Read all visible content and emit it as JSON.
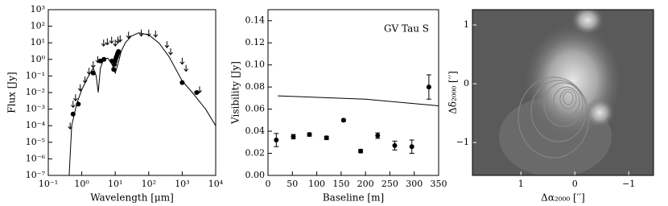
{
  "chart_data": [
    {
      "type": "scatter",
      "xlog": true,
      "ylog": true,
      "x_label": "Wavelength [μm]",
      "y_label": "Flux [Jy]",
      "xlim": [
        0.1,
        10000
      ],
      "ylim": [
        1e-07,
        1000
      ],
      "xticks": [
        {
          "value": 0.1,
          "label": "10⁻¹"
        },
        {
          "value": 1,
          "label": "10⁰"
        },
        {
          "value": 10,
          "label": "10¹"
        },
        {
          "value": 100,
          "label": "10²"
        },
        {
          "value": 1000,
          "label": "10³"
        },
        {
          "value": 10000,
          "label": "10⁴"
        }
      ],
      "yticks": [
        {
          "value": 1e-07,
          "label": "10⁻⁷"
        },
        {
          "value": 1e-06,
          "label": "10⁻⁶"
        },
        {
          "value": 1e-05,
          "label": "10⁻⁵"
        },
        {
          "value": 0.0001,
          "label": "10⁻⁴"
        },
        {
          "value": 0.001,
          "label": "10⁻³"
        },
        {
          "value": 0.01,
          "label": "10⁻²"
        },
        {
          "value": 0.1,
          "label": "10⁻¹"
        },
        {
          "value": 1,
          "label": "10⁰"
        },
        {
          "value": 10,
          "label": "10¹"
        },
        {
          "value": 100,
          "label": "10²"
        },
        {
          "value": 1000,
          "label": "10³"
        }
      ],
      "series": [
        {
          "marker": "line",
          "color": "#000000",
          "x": [
            0.42,
            0.5,
            0.7,
            1,
            1.5,
            2.2,
            2.7,
            3.1,
            3.6,
            4.5,
            6,
            8,
            10,
            12,
            15,
            20,
            30,
            50,
            100,
            200,
            400,
            1000,
            2000,
            5000,
            10000
          ],
          "values": [
            1e-07,
            0.0001,
            0.002,
            0.015,
            0.08,
            0.3,
            0.1,
            0.01,
            0.3,
            1,
            1.2,
            0.5,
            0.15,
            0.5,
            3,
            10,
            25,
            40,
            30,
            10,
            1.5,
            0.05,
            0.01,
            0.001,
            0.0001
          ]
        },
        {
          "marker": "upper-limit",
          "color": "#000000",
          "x": [
            0.45,
            0.55,
            0.65,
            0.9,
            1.25,
            1.65,
            2.2,
            3.0,
            4.5,
            5.8,
            7.8,
            10,
            12,
            14,
            25,
            60,
            100,
            160,
            350,
            450,
            1000,
            1300,
            3300
          ],
          "values": [
            0.0001,
            0.002,
            0.005,
            0.02,
            0.06,
            0.2,
            0.5,
            1,
            10,
            12,
            15,
            10,
            15,
            18,
            30,
            40,
            40,
            35,
            8,
            3,
            0.8,
            0.3,
            0.015
          ]
        },
        {
          "marker": "circle",
          "color": "#000000",
          "x": [
            0.55,
            0.79,
            2.2,
            3.6,
            4.6,
            8.0,
            9.0,
            9.5,
            10,
            10.5,
            11,
            11.5,
            12,
            12.5,
            1000,
            2700
          ],
          "values": [
            0.0005,
            0.002,
            0.15,
            0.8,
            1.0,
            0.8,
            0.25,
            0.5,
            0.8,
            1.2,
            1.5,
            2,
            2.5,
            3,
            0.04,
            0.01
          ]
        }
      ]
    },
    {
      "type": "scatter",
      "x_label": "Baseline [m]",
      "y_label": "Visibility [Jy]",
      "annotation": "GV Tau S",
      "xlim": [
        0,
        350
      ],
      "ylim": [
        0,
        0.15
      ],
      "xticks": [
        0,
        50,
        100,
        150,
        200,
        250,
        300,
        350
      ],
      "yticks": [
        {
          "value": 0,
          "label": "0.00"
        },
        {
          "value": 0.02,
          "label": "0.02"
        },
        {
          "value": 0.04,
          "label": "0.04"
        },
        {
          "value": 0.06,
          "label": "0.06"
        },
        {
          "value": 0.08,
          "label": "0.08"
        },
        {
          "value": 0.1,
          "label": "0.10"
        },
        {
          "value": 0.12,
          "label": "0.12"
        },
        {
          "value": 0.14,
          "label": "0.14"
        }
      ],
      "series": [
        {
          "marker": "line",
          "color": "#000000",
          "x": [
            20,
            200,
            350
          ],
          "values": [
            0.072,
            0.069,
            0.063
          ]
        },
        {
          "marker": "circle",
          "color": "#000000",
          "x": [
            17,
            52,
            85,
            120,
            155,
            190,
            225,
            260,
            295,
            330
          ],
          "values": [
            0.032,
            0.035,
            0.037,
            0.034,
            0.05,
            0.022,
            0.036,
            0.027,
            0.026,
            0.08
          ],
          "errors": [
            0.006,
            0.002,
            0.0015,
            0.0015,
            0.001,
            0.0015,
            0.0025,
            0.004,
            0.006,
            0.011
          ]
        }
      ]
    },
    {
      "type": "image",
      "x_label": "Δα₂₀₀₀ [′′]",
      "y_label": "Δδ₂₀₀₀ [′′]",
      "xlim": [
        1.9,
        -1.46
      ],
      "ylim": [
        -1.56,
        1.26
      ],
      "xticks": [
        1,
        0,
        {
          "value": -1,
          "label": "−1"
        }
      ],
      "yticks": [
        {
          "value": -1,
          "label": "−1"
        },
        0,
        1
      ]
    }
  ]
}
